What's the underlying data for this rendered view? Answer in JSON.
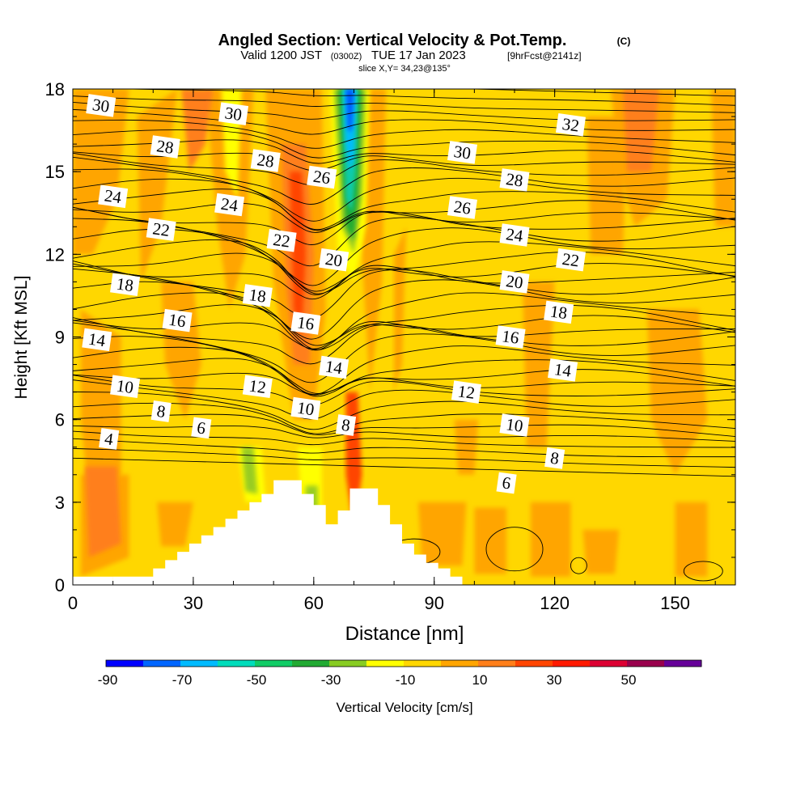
{
  "title": {
    "main": "Angled Section: Vertical Velocity & Pot.Temp.",
    "copyright": "(C)",
    "valid_prefix": "Valid 1200 JST",
    "valid_utc": "(0300Z)",
    "valid_date": "TUE 17 Jan 2023",
    "forecast": "[9hrFcst@2141z]",
    "slice": "slice X,Y= 34,23@135°"
  },
  "colors": {
    "base_fill": "#ffd700",
    "orange": "#ffa500",
    "dark_orange": "#ff7f1a",
    "red_orange": "#ff4500",
    "red": "#ff1a00",
    "yellow": "#ffff00",
    "yellow_green": "#99cc22",
    "green": "#22aa33",
    "teal": "#11ccaa",
    "cyan": "#00bbff",
    "blue": "#0055ff",
    "terrain": "#ffffff",
    "contour": "#000000"
  },
  "chart_data": {
    "type": "contour",
    "title": "Angled Section: Vertical Velocity & Pot.Temp.",
    "xlabel": "Distance [nm]",
    "ylabel": "Height [Kft MSL]",
    "xlim": [
      0,
      165
    ],
    "ylim": [
      0,
      18
    ],
    "x_ticks": [
      0,
      30,
      60,
      90,
      120,
      150
    ],
    "y_ticks": [
      0,
      3,
      6,
      9,
      12,
      15,
      18
    ],
    "contour_labels": [
      {
        "text": "30",
        "x": 7,
        "y": 17.4
      },
      {
        "text": "30",
        "x": 40,
        "y": 17.1
      },
      {
        "text": "32",
        "x": 124,
        "y": 16.7
      },
      {
        "text": "28",
        "x": 23,
        "y": 15.9
      },
      {
        "text": "28",
        "x": 48,
        "y": 15.4
      },
      {
        "text": "30",
        "x": 97,
        "y": 15.7
      },
      {
        "text": "26",
        "x": 62,
        "y": 14.8
      },
      {
        "text": "28",
        "x": 110,
        "y": 14.7
      },
      {
        "text": "24",
        "x": 10,
        "y": 14.1
      },
      {
        "text": "24",
        "x": 39,
        "y": 13.8
      },
      {
        "text": "26",
        "x": 97,
        "y": 13.7
      },
      {
        "text": "22",
        "x": 22,
        "y": 12.9
      },
      {
        "text": "22",
        "x": 52,
        "y": 12.5
      },
      {
        "text": "24",
        "x": 110,
        "y": 12.7
      },
      {
        "text": "20",
        "x": 65,
        "y": 11.8
      },
      {
        "text": "22",
        "x": 124,
        "y": 11.8
      },
      {
        "text": "18",
        "x": 13,
        "y": 10.9
      },
      {
        "text": "20",
        "x": 110,
        "y": 11.0
      },
      {
        "text": "18",
        "x": 46,
        "y": 10.5
      },
      {
        "text": "18",
        "x": 121,
        "y": 9.9
      },
      {
        "text": "16",
        "x": 26,
        "y": 9.6
      },
      {
        "text": "16",
        "x": 58,
        "y": 9.5
      },
      {
        "text": "14",
        "x": 6,
        "y": 8.9
      },
      {
        "text": "16",
        "x": 109,
        "y": 9.0
      },
      {
        "text": "14",
        "x": 65,
        "y": 7.9
      },
      {
        "text": "14",
        "x": 122,
        "y": 7.8
      },
      {
        "text": "10",
        "x": 13,
        "y": 7.2
      },
      {
        "text": "12",
        "x": 46,
        "y": 7.2
      },
      {
        "text": "12",
        "x": 98,
        "y": 7.0
      },
      {
        "text": "8",
        "x": 22,
        "y": 6.3
      },
      {
        "text": "10",
        "x": 58,
        "y": 6.4
      },
      {
        "text": "6",
        "x": 32,
        "y": 5.7
      },
      {
        "text": "8",
        "x": 68,
        "y": 5.8
      },
      {
        "text": "10",
        "x": 110,
        "y": 5.8
      },
      {
        "text": "4",
        "x": 9,
        "y": 5.3
      },
      {
        "text": "8",
        "x": 120,
        "y": 4.6
      },
      {
        "text": "6",
        "x": 108,
        "y": 3.7
      }
    ],
    "terrain": [
      [
        0,
        0
      ],
      [
        10,
        0
      ],
      [
        10,
        0.3
      ],
      [
        20,
        0.3
      ],
      [
        20,
        0.6
      ],
      [
        23,
        0.6
      ],
      [
        23,
        0.9
      ],
      [
        26,
        0.9
      ],
      [
        26,
        1.2
      ],
      [
        29,
        1.2
      ],
      [
        29,
        1.5
      ],
      [
        32,
        1.5
      ],
      [
        32,
        1.8
      ],
      [
        35,
        1.8
      ],
      [
        35,
        2.1
      ],
      [
        38,
        2.1
      ],
      [
        38,
        2.4
      ],
      [
        41,
        2.4
      ],
      [
        41,
        2.7
      ],
      [
        44,
        2.7
      ],
      [
        44,
        3.0
      ],
      [
        47,
        3.0
      ],
      [
        47,
        3.3
      ],
      [
        50,
        3.3
      ],
      [
        50,
        3.8
      ],
      [
        57,
        3.8
      ],
      [
        57,
        3.3
      ],
      [
        60,
        3.3
      ],
      [
        60,
        2.9
      ],
      [
        63,
        2.9
      ],
      [
        63,
        2.2
      ],
      [
        66,
        2.2
      ],
      [
        66,
        2.7
      ],
      [
        69,
        2.7
      ],
      [
        69,
        3.5
      ],
      [
        76,
        3.5
      ],
      [
        76,
        2.9
      ],
      [
        79,
        2.9
      ],
      [
        79,
        2.2
      ],
      [
        82,
        2.2
      ],
      [
        82,
        1.5
      ],
      [
        85,
        1.5
      ],
      [
        85,
        1.1
      ],
      [
        88,
        1.1
      ],
      [
        88,
        0.8
      ],
      [
        91,
        0.8
      ],
      [
        91,
        0.6
      ],
      [
        94,
        0.6
      ],
      [
        94,
        0.3
      ],
      [
        97,
        0.3
      ],
      [
        97,
        0
      ],
      [
        165,
        0
      ]
    ],
    "velocity_colorbar": {
      "label": "Vertical Velocity [cm/s]",
      "tick_labels": [
        -90,
        -70,
        -50,
        -30,
        -10,
        10,
        30,
        50
      ],
      "colors": [
        "#0000ff",
        "#0066ff",
        "#00bbff",
        "#00ddbb",
        "#11cc66",
        "#22aa33",
        "#88cc22",
        "#ffff00",
        "#ffd700",
        "#ffa500",
        "#ff7f1a",
        "#ff4500",
        "#ff1a00",
        "#dd0033",
        "#99004d",
        "#660099"
      ]
    }
  }
}
